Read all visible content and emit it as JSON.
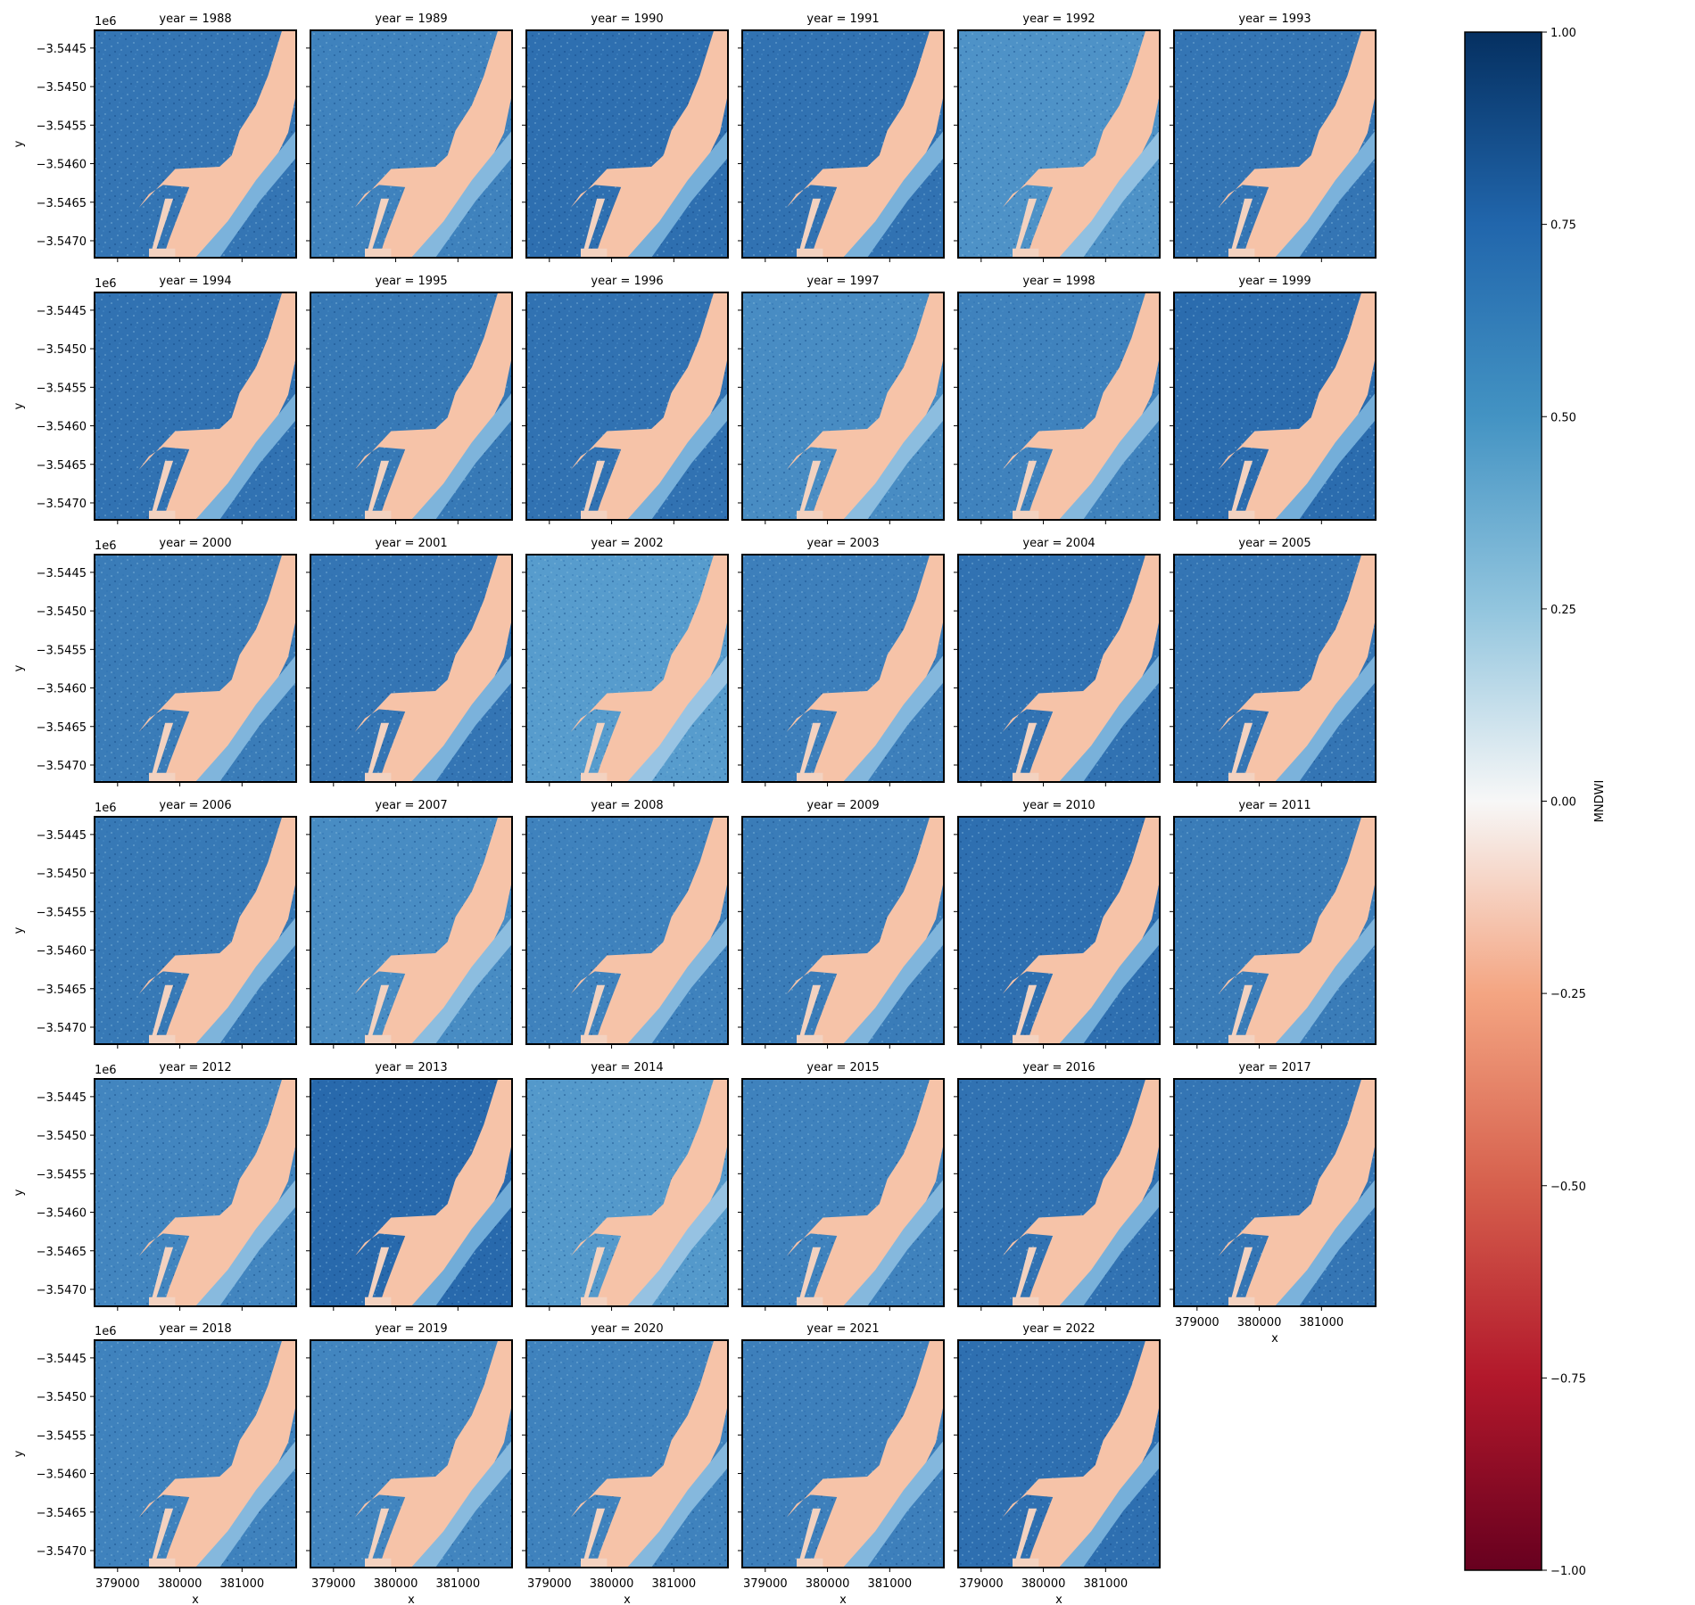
{
  "chart_data": {
    "type": "heatmap",
    "title": "",
    "facet_label_prefix": "year = ",
    "facets": [
      "1988",
      "1989",
      "1990",
      "1991",
      "1992",
      "1993",
      "1994",
      "1995",
      "1996",
      "1997",
      "1998",
      "1999",
      "2000",
      "2001",
      "2002",
      "2003",
      "2004",
      "2005",
      "2006",
      "2007",
      "2008",
      "2009",
      "2010",
      "2011",
      "2012",
      "2013",
      "2014",
      "2015",
      "2016",
      "2017",
      "2018",
      "2019",
      "2020",
      "2021",
      "2022"
    ],
    "layout": {
      "columns": 6,
      "rows": 6
    },
    "xlabel": "x",
    "ylabel": "y",
    "x_ticks": [
      379000,
      380000,
      381000
    ],
    "x_tick_labels": [
      "379000",
      "380000",
      "381000"
    ],
    "x_range": [
      378630,
      381870
    ],
    "y_offset_label": "1e6",
    "y_ticks": [
      -3.5445,
      -3.545,
      -3.5455,
      -3.546,
      -3.5465,
      -3.547
    ],
    "y_tick_labels": [
      "−3.5445",
      "−3.5450",
      "−3.5455",
      "−3.5460",
      "−3.5465",
      "−3.5470"
    ],
    "y_range": [
      -3.54722,
      -3.54427
    ],
    "colorbar": {
      "label": "MNDWI",
      "colormap": "RdBu",
      "range": [
        -1.0,
        1.0
      ],
      "ticks": [
        1.0,
        0.75,
        0.5,
        0.25,
        0.0,
        -0.25,
        -0.5,
        -0.75,
        -1.0
      ],
      "tick_labels": [
        "1.00",
        "0.75",
        "0.50",
        "0.25",
        "0.00",
        "−0.25",
        "−0.50",
        "−0.75",
        "−1.00"
      ]
    },
    "colors": {
      "water_dark": "#1f5fa6",
      "water_light": "#5a9fcf",
      "land": "#f6c3a8",
      "river": "#6aa8d6"
    }
  }
}
